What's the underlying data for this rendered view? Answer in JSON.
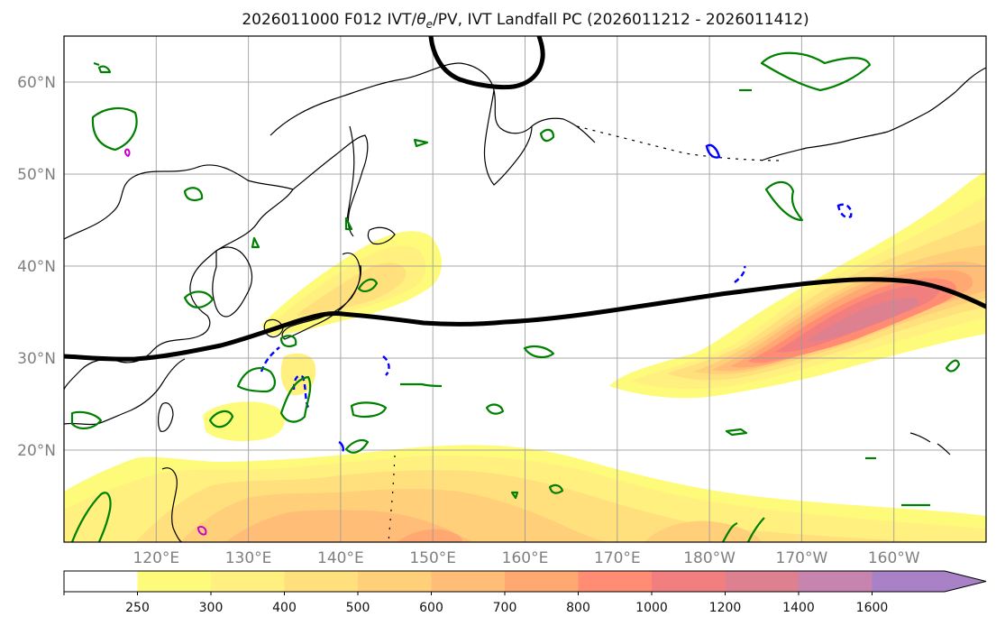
{
  "title": {
    "prefix": "2026011000 F012 IVT/",
    "theta": "θ",
    "theta_sub": "e",
    "suffix": "/PV, IVT Landfall PC (2026011212 - 2026011412)"
  },
  "map": {
    "lon_range": [
      110,
      210
    ],
    "lat_range": [
      10,
      65
    ],
    "lon_ticks": [
      {
        "lon": 120,
        "label": "120°E"
      },
      {
        "lon": 130,
        "label": "130°E"
      },
      {
        "lon": 140,
        "label": "140°E"
      },
      {
        "lon": 150,
        "label": "150°E"
      },
      {
        "lon": 160,
        "label": "160°E"
      },
      {
        "lon": 170,
        "label": "170°E"
      },
      {
        "lon": 180,
        "label": "180°W"
      },
      {
        "lon": 190,
        "label": "170°W"
      },
      {
        "lon": 200,
        "label": "160°W"
      }
    ],
    "lat_ticks": [
      {
        "lat": 20,
        "label": "20°N"
      },
      {
        "lat": 30,
        "label": "30°N"
      },
      {
        "lat": 40,
        "label": "40°N"
      },
      {
        "lat": 50,
        "label": "50°N"
      },
      {
        "lat": 60,
        "label": "60°N"
      }
    ]
  },
  "colorbar": {
    "units_note": "",
    "bins": [
      {
        "from": 0,
        "to": 250,
        "label": "",
        "color": "#ffffff"
      },
      {
        "from": 250,
        "to": 300,
        "label": "250",
        "color": "#fffb7a"
      },
      {
        "from": 300,
        "to": 400,
        "label": "300",
        "color": "#fff080"
      },
      {
        "from": 400,
        "to": 500,
        "label": "400",
        "color": "#ffe07c"
      },
      {
        "from": 500,
        "to": 600,
        "label": "500",
        "color": "#ffcf7a"
      },
      {
        "from": 600,
        "to": 700,
        "label": "600",
        "color": "#ffbd78"
      },
      {
        "from": 700,
        "to": 800,
        "label": "700",
        "color": "#ffa872"
      },
      {
        "from": 800,
        "to": 1000,
        "label": "800",
        "color": "#ff8c73"
      },
      {
        "from": 1000,
        "to": 1200,
        "label": "1000",
        "color": "#f17f80"
      },
      {
        "from": 1200,
        "to": 1400,
        "label": "1200",
        "color": "#dd8090"
      },
      {
        "from": 1400,
        "to": 1600,
        "label": "1400",
        "color": "#c684ae"
      },
      {
        "from": 1600,
        "to": null,
        "label": "1600",
        "color": "#a881c6"
      }
    ]
  },
  "colors": {
    "pv_contour": "#008000",
    "theta_contour": "#0000ff",
    "landfall_line": "#000000",
    "coast": "#000000",
    "grid": "#9a9a9a",
    "magenta": "#cc00cc"
  }
}
